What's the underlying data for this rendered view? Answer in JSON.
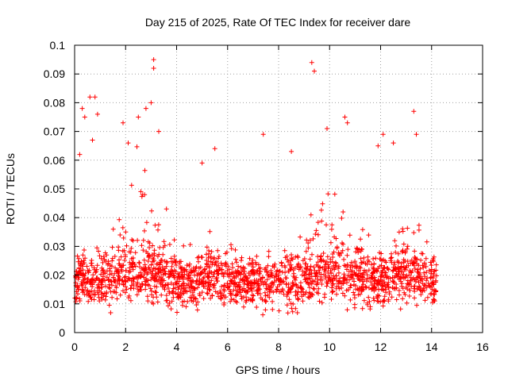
{
  "chart_data": {
    "type": "scatter",
    "title": "Day 215 of 2025, Rate Of TEC Index for receiver dare",
    "xlabel": "GPS time / hours",
    "ylabel": "ROTI / TECUs",
    "xlim": [
      0,
      16
    ],
    "ylim": [
      0,
      0.1
    ],
    "xticks": [
      "0",
      "2",
      "4",
      "6",
      "8",
      "10",
      "12",
      "14",
      "16"
    ],
    "yticks": [
      "0",
      "0.01",
      "0.02",
      "0.03",
      "0.04",
      "0.05",
      "0.06",
      "0.07",
      "0.08",
      "0.09",
      "0.1"
    ],
    "grid": true,
    "marker": "+",
    "color": "#ff0000",
    "x_range_of_data": [
      0,
      14.2
    ],
    "typical_band": [
      0.01,
      0.03
    ],
    "outliers": [
      [
        0.3,
        0.078
      ],
      [
        0.6,
        0.082
      ],
      [
        0.8,
        0.082
      ],
      [
        0.9,
        0.076
      ],
      [
        0.4,
        0.075
      ],
      [
        0.7,
        0.067
      ],
      [
        0.2,
        0.062
      ],
      [
        1.9,
        0.073
      ],
      [
        2.1,
        0.066
      ],
      [
        2.5,
        0.075
      ],
      [
        2.8,
        0.078
      ],
      [
        3.0,
        0.08
      ],
      [
        3.1,
        0.095
      ],
      [
        3.1,
        0.092
      ],
      [
        3.3,
        0.07
      ],
      [
        5.5,
        0.064
      ],
      [
        7.4,
        0.069
      ],
      [
        9.3,
        0.094
      ],
      [
        9.4,
        0.091
      ],
      [
        9.9,
        0.071
      ],
      [
        10.6,
        0.075
      ],
      [
        10.7,
        0.073
      ],
      [
        12.1,
        0.069
      ],
      [
        12.5,
        0.066
      ],
      [
        13.3,
        0.077
      ],
      [
        13.4,
        0.069
      ],
      [
        3.6,
        0.043
      ],
      [
        5.0,
        0.059
      ],
      [
        8.5,
        0.063
      ],
      [
        11.9,
        0.065
      ]
    ]
  }
}
